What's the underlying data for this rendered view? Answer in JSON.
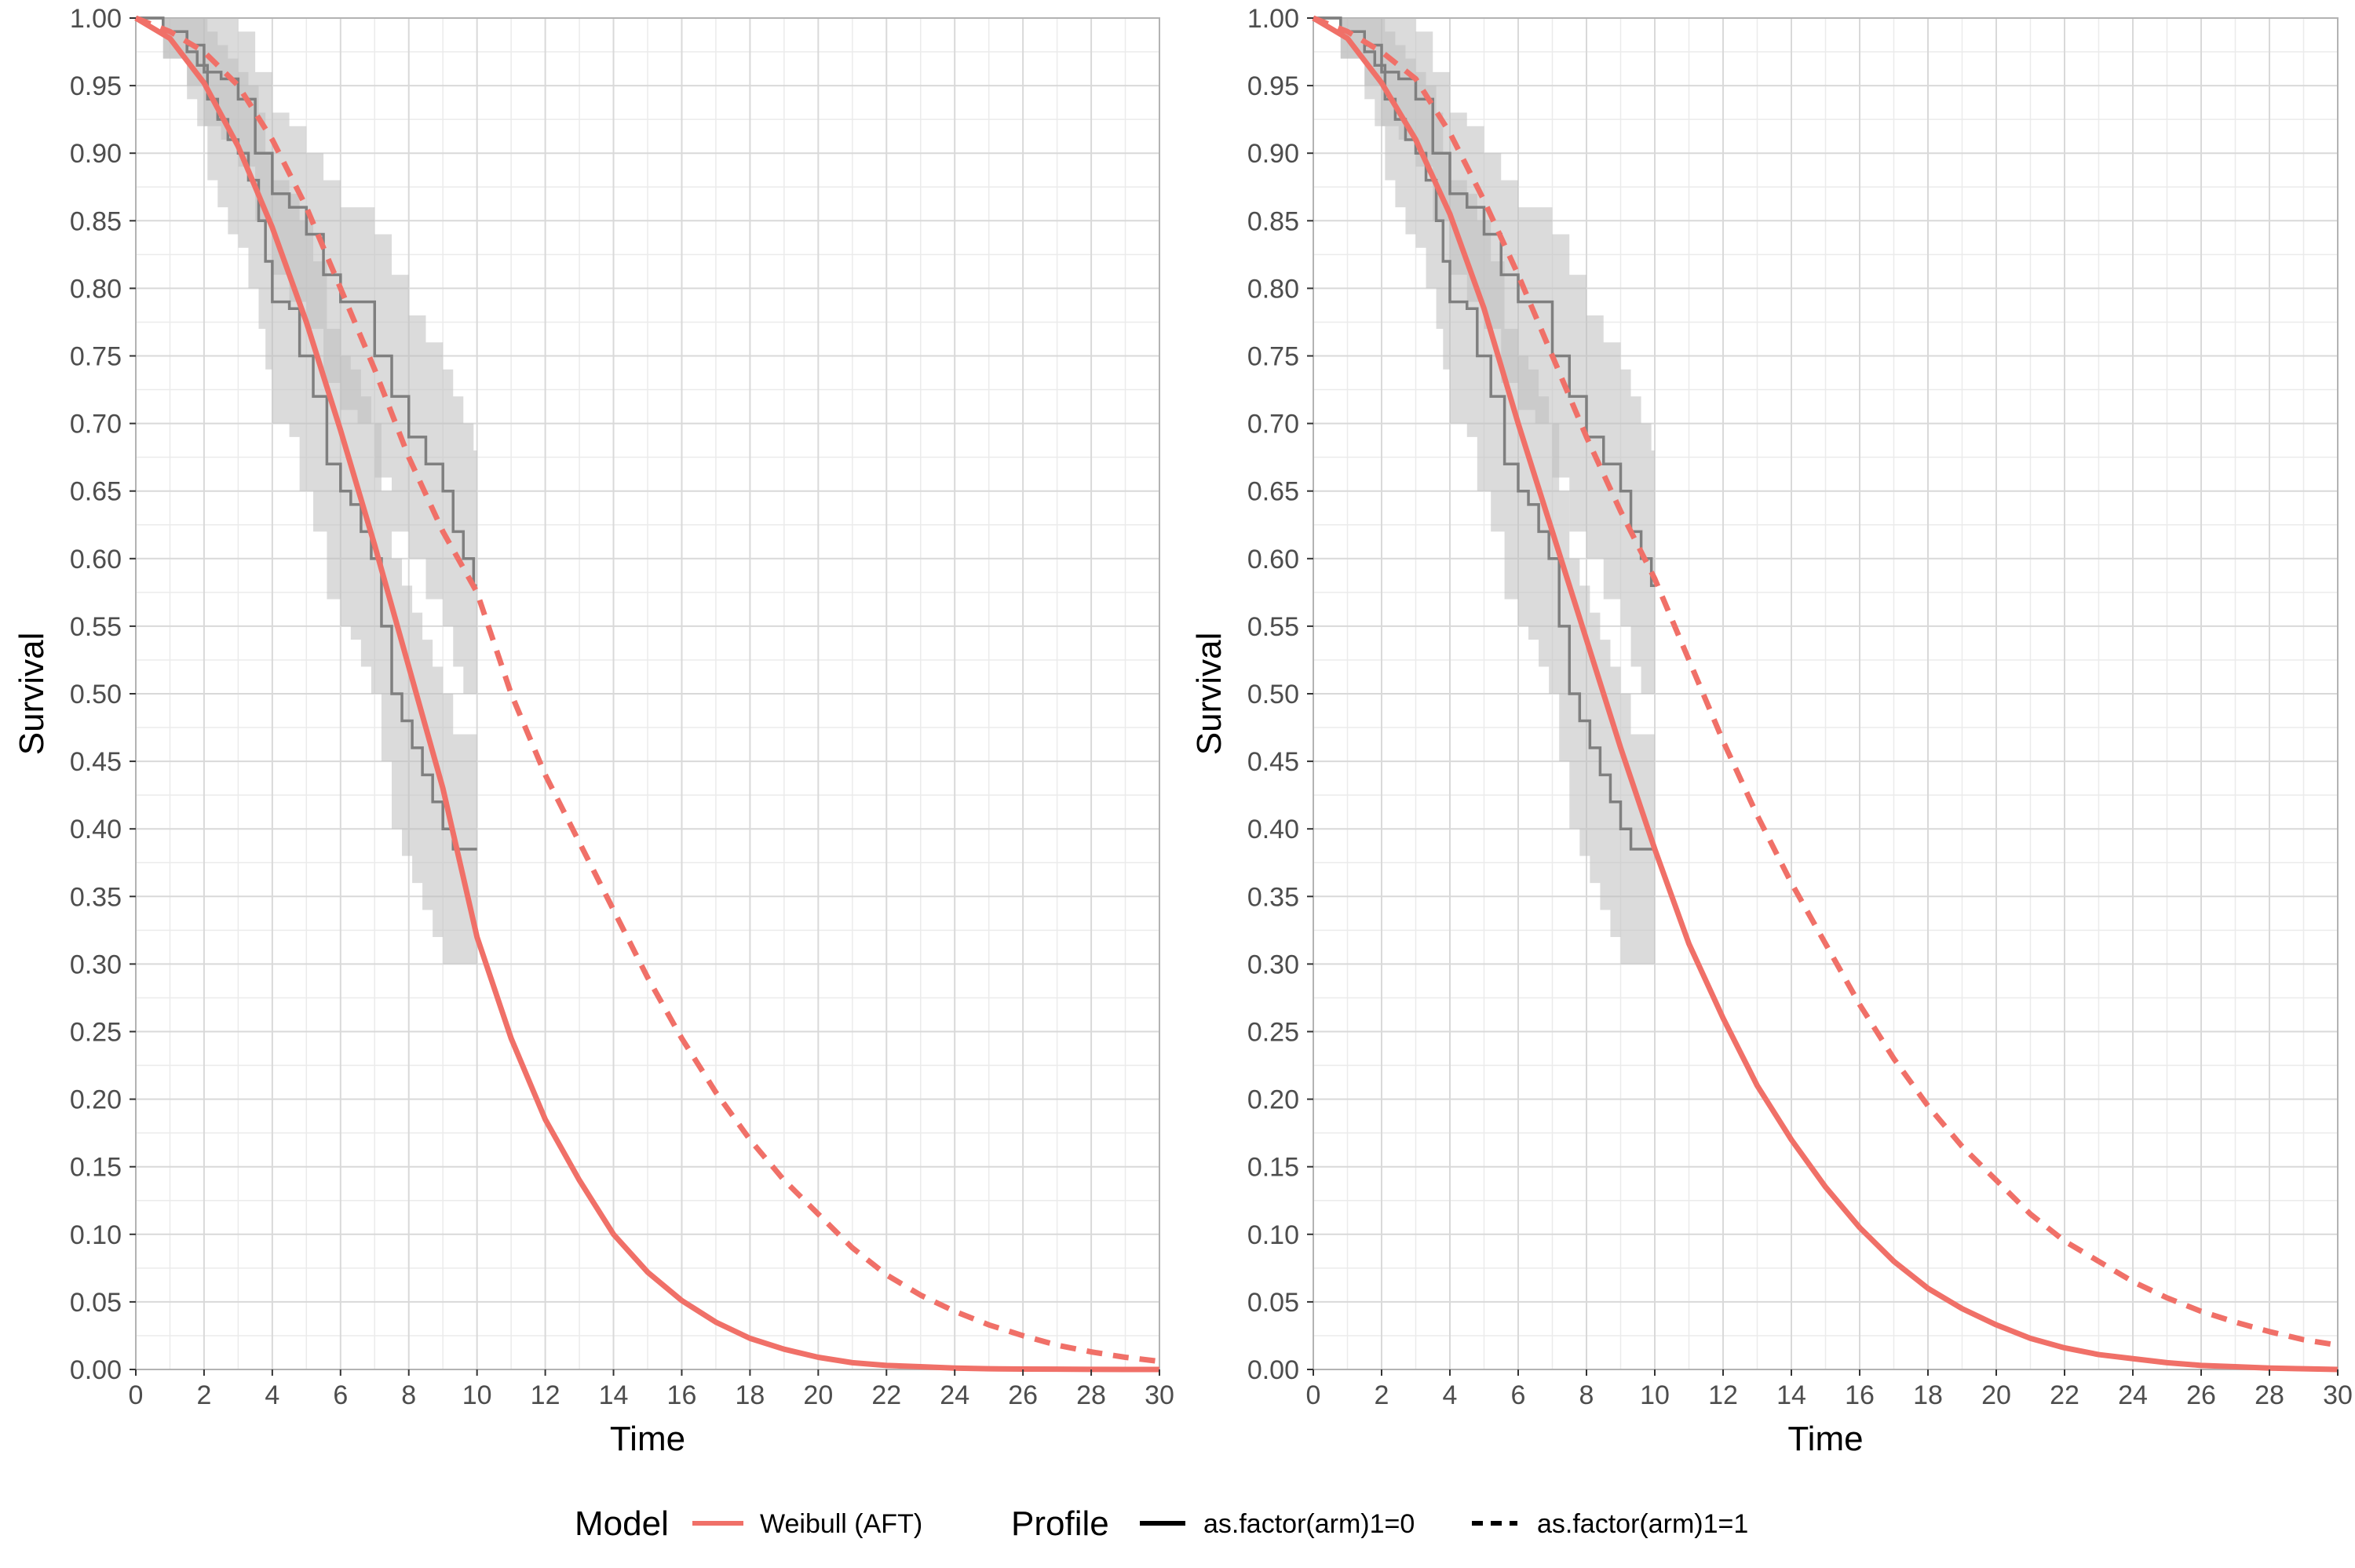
{
  "chart_data": [
    {
      "type": "line",
      "xlabel": "Time",
      "ylabel": "Survival",
      "xlim": [
        0,
        30
      ],
      "ylim": [
        0,
        1
      ],
      "x_ticks": [
        "0",
        "2",
        "4",
        "6",
        "8",
        "10",
        "12",
        "14",
        "16",
        "18",
        "20",
        "22",
        "24",
        "26",
        "28",
        "30"
      ],
      "y_ticks": [
        "0.00",
        "0.05",
        "0.10",
        "0.15",
        "0.20",
        "0.25",
        "0.30",
        "0.35",
        "0.40",
        "0.45",
        "0.50",
        "0.55",
        "0.60",
        "0.65",
        "0.70",
        "0.75",
        "0.80",
        "0.85",
        "0.90",
        "0.95",
        "1.00"
      ],
      "grid": true,
      "model_curves": {
        "x": [
          0,
          1,
          2,
          3,
          4,
          5,
          6,
          7,
          8,
          9,
          10,
          11,
          12,
          13,
          14,
          15,
          16,
          17,
          18,
          19,
          20,
          21,
          22,
          23,
          24,
          25,
          26,
          27,
          28,
          29,
          30
        ],
        "series": [
          {
            "name": "as.factor(arm)1=0",
            "values": [
              1.0,
              0.985,
              0.952,
              0.905,
              0.845,
              0.775,
              0.695,
              0.61,
              0.52,
              0.43,
              0.32,
              0.245,
              0.185,
              0.14,
              0.1,
              0.072,
              0.051,
              0.035,
              0.023,
              0.015,
              0.009,
              0.005,
              0.003,
              0.002,
              0.001,
              0.0005,
              0.0003,
              0.0002,
              0.0001,
              0.0,
              0.0
            ]
          },
          {
            "name": "as.factor(arm)1=1",
            "values": [
              1.0,
              0.99,
              0.975,
              0.95,
              0.91,
              0.86,
              0.8,
              0.74,
              0.675,
              0.62,
              0.575,
              0.5,
              0.44,
              0.39,
              0.34,
              0.29,
              0.245,
              0.205,
              0.17,
              0.14,
              0.115,
              0.09,
              0.07,
              0.055,
              0.043,
              0.033,
              0.025,
              0.018,
              0.013,
              0.009,
              0.006
            ]
          }
        ]
      },
      "km_curves": [
        {
          "x": [
            0,
            0.8,
            1.5,
            1.8,
            2.1,
            2.4,
            2.7,
            3.0,
            3.3,
            3.6,
            3.8,
            4.0,
            4.2,
            4.5,
            4.8,
            5.2,
            5.6,
            6.0,
            6.3,
            6.6,
            6.9,
            7.2,
            7.5,
            7.8,
            8.1,
            8.4,
            8.7,
            9.0,
            9.3,
            9.6,
            9.9,
            10.0
          ],
          "y": [
            1.0,
            0.99,
            0.975,
            0.965,
            0.94,
            0.925,
            0.91,
            0.9,
            0.88,
            0.85,
            0.82,
            0.79,
            0.79,
            0.785,
            0.75,
            0.72,
            0.67,
            0.65,
            0.64,
            0.62,
            0.6,
            0.55,
            0.5,
            0.48,
            0.46,
            0.44,
            0.42,
            0.4,
            0.385,
            0.385,
            0.385,
            0.385
          ],
          "lower": [
            1.0,
            0.97,
            0.94,
            0.92,
            0.88,
            0.86,
            0.84,
            0.83,
            0.8,
            0.77,
            0.74,
            0.7,
            0.7,
            0.69,
            0.65,
            0.62,
            0.57,
            0.55,
            0.54,
            0.52,
            0.5,
            0.45,
            0.4,
            0.38,
            0.36,
            0.34,
            0.32,
            0.3,
            0.3,
            0.3,
            0.3,
            0.3
          ],
          "upper": [
            1.0,
            1.0,
            1.0,
            1.0,
            0.99,
            0.98,
            0.97,
            0.96,
            0.95,
            0.93,
            0.9,
            0.88,
            0.88,
            0.87,
            0.85,
            0.82,
            0.77,
            0.75,
            0.74,
            0.72,
            0.7,
            0.65,
            0.6,
            0.58,
            0.56,
            0.54,
            0.52,
            0.5,
            0.47,
            0.47,
            0.47,
            0.47
          ]
        },
        {
          "x": [
            0,
            0.8,
            1.5,
            2.0,
            2.5,
            3.0,
            3.5,
            4.0,
            4.5,
            5.0,
            5.5,
            6.0,
            6.5,
            7.0,
            7.5,
            8.0,
            8.5,
            9.0,
            9.3,
            9.6,
            9.9,
            10.0
          ],
          "y": [
            1.0,
            0.99,
            0.98,
            0.96,
            0.955,
            0.94,
            0.9,
            0.87,
            0.86,
            0.84,
            0.81,
            0.79,
            0.79,
            0.75,
            0.72,
            0.69,
            0.67,
            0.65,
            0.62,
            0.6,
            0.58,
            0.58
          ],
          "lower": [
            1.0,
            0.97,
            0.95,
            0.92,
            0.91,
            0.89,
            0.85,
            0.81,
            0.79,
            0.77,
            0.73,
            0.71,
            0.7,
            0.66,
            0.62,
            0.6,
            0.57,
            0.55,
            0.52,
            0.5,
            0.5,
            0.5
          ],
          "upper": [
            1.0,
            1.0,
            1.0,
            1.0,
            1.0,
            0.99,
            0.96,
            0.93,
            0.92,
            0.9,
            0.88,
            0.86,
            0.86,
            0.84,
            0.81,
            0.78,
            0.76,
            0.74,
            0.72,
            0.7,
            0.68,
            0.68
          ]
        }
      ]
    },
    {
      "type": "line",
      "xlabel": "Time",
      "ylabel": "Survival",
      "xlim": [
        0,
        30
      ],
      "ylim": [
        0,
        1
      ],
      "x_ticks": [
        "0",
        "2",
        "4",
        "6",
        "8",
        "10",
        "12",
        "14",
        "16",
        "18",
        "20",
        "22",
        "24",
        "26",
        "28",
        "30"
      ],
      "y_ticks": [
        "0.00",
        "0.05",
        "0.10",
        "0.15",
        "0.20",
        "0.25",
        "0.30",
        "0.35",
        "0.40",
        "0.45",
        "0.50",
        "0.55",
        "0.60",
        "0.65",
        "0.70",
        "0.75",
        "0.80",
        "0.85",
        "0.90",
        "0.95",
        "1.00"
      ],
      "grid": true,
      "model_curves": {
        "x": [
          0,
          1,
          2,
          3,
          4,
          5,
          6,
          7,
          8,
          9,
          10,
          11,
          12,
          13,
          14,
          15,
          16,
          17,
          18,
          19,
          20,
          21,
          22,
          23,
          24,
          25,
          26,
          27,
          28,
          29,
          30
        ],
        "series": [
          {
            "name": "as.factor(arm)1=0",
            "values": [
              1.0,
              0.985,
              0.952,
              0.91,
              0.855,
              0.785,
              0.7,
              0.62,
              0.54,
              0.46,
              0.385,
              0.315,
              0.26,
              0.21,
              0.17,
              0.135,
              0.105,
              0.08,
              0.06,
              0.045,
              0.033,
              0.023,
              0.016,
              0.011,
              0.008,
              0.005,
              0.003,
              0.002,
              0.001,
              0.0005,
              0.0
            ]
          },
          {
            "name": "as.factor(arm)1=1",
            "values": [
              1.0,
              0.99,
              0.975,
              0.955,
              0.915,
              0.865,
              0.81,
              0.75,
              0.69,
              0.635,
              0.585,
              0.525,
              0.465,
              0.41,
              0.36,
              0.315,
              0.27,
              0.23,
              0.195,
              0.165,
              0.14,
              0.115,
              0.095,
              0.08,
              0.065,
              0.053,
              0.043,
              0.035,
              0.028,
              0.022,
              0.018
            ]
          }
        ]
      },
      "km_curves": [
        {
          "x": [
            0,
            0.8,
            1.5,
            1.8,
            2.1,
            2.4,
            2.7,
            3.0,
            3.3,
            3.6,
            3.8,
            4.0,
            4.2,
            4.5,
            4.8,
            5.2,
            5.6,
            6.0,
            6.3,
            6.6,
            6.9,
            7.2,
            7.5,
            7.8,
            8.1,
            8.4,
            8.7,
            9.0,
            9.3,
            9.6,
            9.9,
            10.0
          ],
          "y": [
            1.0,
            0.99,
            0.975,
            0.965,
            0.94,
            0.925,
            0.91,
            0.9,
            0.88,
            0.85,
            0.82,
            0.79,
            0.79,
            0.785,
            0.75,
            0.72,
            0.67,
            0.65,
            0.64,
            0.62,
            0.6,
            0.55,
            0.5,
            0.48,
            0.46,
            0.44,
            0.42,
            0.4,
            0.385,
            0.385,
            0.385,
            0.385
          ],
          "lower": [
            1.0,
            0.97,
            0.94,
            0.92,
            0.88,
            0.86,
            0.84,
            0.83,
            0.8,
            0.77,
            0.74,
            0.7,
            0.7,
            0.69,
            0.65,
            0.62,
            0.57,
            0.55,
            0.54,
            0.52,
            0.5,
            0.45,
            0.4,
            0.38,
            0.36,
            0.34,
            0.32,
            0.3,
            0.3,
            0.3,
            0.3,
            0.3
          ],
          "upper": [
            1.0,
            1.0,
            1.0,
            1.0,
            0.99,
            0.98,
            0.97,
            0.96,
            0.95,
            0.93,
            0.9,
            0.88,
            0.88,
            0.87,
            0.85,
            0.82,
            0.77,
            0.75,
            0.74,
            0.72,
            0.7,
            0.65,
            0.6,
            0.58,
            0.56,
            0.54,
            0.52,
            0.5,
            0.47,
            0.47,
            0.47,
            0.47
          ]
        },
        {
          "x": [
            0,
            0.8,
            1.5,
            2.0,
            2.5,
            3.0,
            3.5,
            4.0,
            4.5,
            5.0,
            5.5,
            6.0,
            6.5,
            7.0,
            7.5,
            8.0,
            8.5,
            9.0,
            9.3,
            9.6,
            9.9,
            10.0
          ],
          "y": [
            1.0,
            0.99,
            0.98,
            0.96,
            0.955,
            0.94,
            0.9,
            0.87,
            0.86,
            0.84,
            0.81,
            0.79,
            0.79,
            0.75,
            0.72,
            0.69,
            0.67,
            0.65,
            0.62,
            0.6,
            0.58,
            0.58
          ],
          "lower": [
            1.0,
            0.97,
            0.95,
            0.92,
            0.91,
            0.89,
            0.85,
            0.81,
            0.79,
            0.77,
            0.73,
            0.71,
            0.7,
            0.66,
            0.62,
            0.6,
            0.57,
            0.55,
            0.52,
            0.5,
            0.5,
            0.5
          ],
          "upper": [
            1.0,
            1.0,
            1.0,
            1.0,
            1.0,
            0.99,
            0.96,
            0.93,
            0.92,
            0.9,
            0.88,
            0.86,
            0.86,
            0.84,
            0.81,
            0.78,
            0.76,
            0.74,
            0.72,
            0.7,
            0.68,
            0.68
          ]
        }
      ]
    }
  ],
  "legend": {
    "model_title": "Model",
    "model_label": "Weibull (AFT)",
    "profile_title": "Profile",
    "profile_labels": [
      "as.factor(arm)1=0",
      "as.factor(arm)1=1"
    ],
    "model_color": "#F07068",
    "ci_color": "#bdbdbd",
    "km_color": "#7f7f7f",
    "grid_color": "#d9d9d9"
  }
}
